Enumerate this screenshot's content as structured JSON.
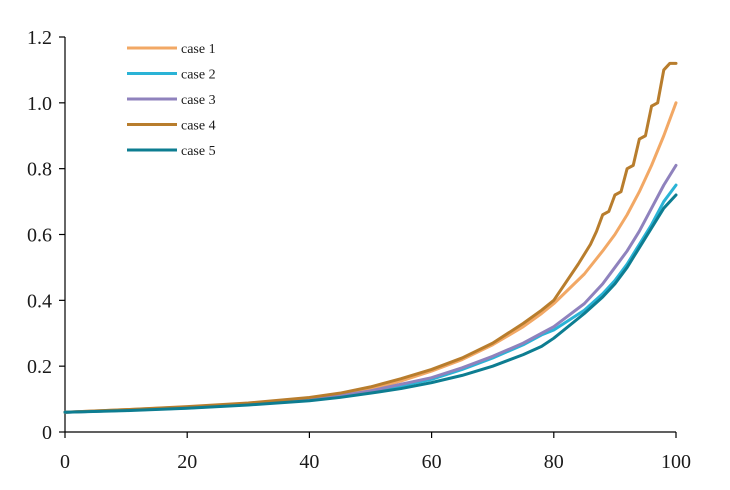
{
  "chart_data": {
    "type": "line",
    "title": "",
    "xlabel": "",
    "ylabel": "",
    "xlim": [
      0,
      100
    ],
    "ylim": [
      0,
      1.2
    ],
    "x_ticks": [
      0,
      20,
      40,
      60,
      80,
      100
    ],
    "x_tick_labels": [
      "0",
      "20",
      "40",
      "60",
      "80",
      "100"
    ],
    "y_ticks": [
      0,
      0.2,
      0.4,
      0.6,
      0.8,
      1.0,
      1.2
    ],
    "y_tick_labels": [
      "0",
      "0.2",
      "0.4",
      "0.6",
      "0.8",
      "1.0",
      "1.2"
    ],
    "grid": false,
    "legend_position": "top-left",
    "series": [
      {
        "name": "case 1",
        "color": "#f2a865",
        "x": [
          0,
          10,
          20,
          30,
          40,
          45,
          50,
          55,
          60,
          65,
          70,
          75,
          78,
          80,
          85,
          88,
          90,
          92,
          94,
          96,
          98,
          100
        ],
        "y": [
          0.06,
          0.068,
          0.076,
          0.086,
          0.1,
          0.112,
          0.13,
          0.155,
          0.185,
          0.22,
          0.265,
          0.32,
          0.36,
          0.39,
          0.48,
          0.55,
          0.6,
          0.66,
          0.73,
          0.81,
          0.9,
          1.0
        ]
      },
      {
        "name": "case 2",
        "color": "#2ab3d6",
        "x": [
          0,
          10,
          20,
          30,
          40,
          45,
          50,
          55,
          60,
          65,
          70,
          75,
          78,
          80,
          85,
          88,
          90,
          92,
          94,
          96,
          98,
          100
        ],
        "y": [
          0.06,
          0.066,
          0.073,
          0.083,
          0.097,
          0.108,
          0.122,
          0.14,
          0.16,
          0.19,
          0.225,
          0.265,
          0.295,
          0.31,
          0.37,
          0.42,
          0.46,
          0.51,
          0.57,
          0.63,
          0.7,
          0.75
        ]
      },
      {
        "name": "case 3",
        "color": "#8f82bd",
        "x": [
          0,
          10,
          20,
          30,
          40,
          45,
          50,
          55,
          60,
          65,
          70,
          75,
          78,
          80,
          85,
          88,
          90,
          92,
          94,
          96,
          98,
          100
        ],
        "y": [
          0.06,
          0.066,
          0.074,
          0.084,
          0.098,
          0.11,
          0.125,
          0.145,
          0.165,
          0.195,
          0.23,
          0.27,
          0.3,
          0.32,
          0.39,
          0.45,
          0.5,
          0.55,
          0.61,
          0.68,
          0.75,
          0.81
        ]
      },
      {
        "name": "case 4",
        "color": "#b87d2d",
        "x": [
          0,
          10,
          20,
          30,
          40,
          45,
          50,
          55,
          60,
          65,
          70,
          75,
          78,
          80,
          84,
          86,
          87,
          88,
          89,
          90,
          91,
          92,
          93,
          94,
          95,
          96,
          97,
          98,
          99,
          100
        ],
        "y": [
          0.06,
          0.068,
          0.077,
          0.088,
          0.105,
          0.118,
          0.137,
          0.162,
          0.19,
          0.225,
          0.27,
          0.33,
          0.37,
          0.4,
          0.51,
          0.57,
          0.61,
          0.66,
          0.67,
          0.72,
          0.73,
          0.8,
          0.81,
          0.89,
          0.9,
          0.99,
          1.0,
          1.1,
          1.12,
          1.12
        ]
      },
      {
        "name": "case 5",
        "color": "#0d7d91",
        "x": [
          0,
          10,
          20,
          30,
          40,
          45,
          50,
          55,
          60,
          65,
          70,
          75,
          78,
          80,
          85,
          88,
          90,
          92,
          94,
          96,
          98,
          100
        ],
        "y": [
          0.06,
          0.065,
          0.072,
          0.082,
          0.095,
          0.105,
          0.118,
          0.132,
          0.15,
          0.172,
          0.2,
          0.235,
          0.26,
          0.285,
          0.36,
          0.41,
          0.45,
          0.5,
          0.56,
          0.62,
          0.68,
          0.72
        ]
      }
    ]
  }
}
